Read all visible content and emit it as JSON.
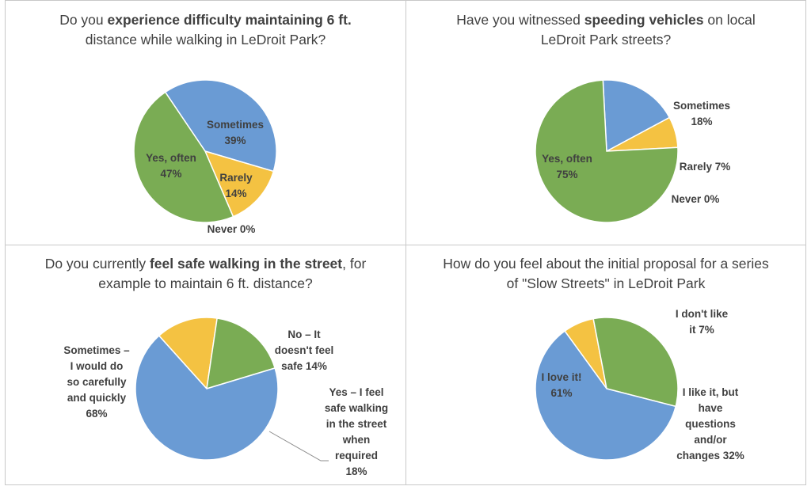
{
  "colors": {
    "blue": "#6a9bd4",
    "green": "#7aac54",
    "yellow": "#f4c242",
    "leader": "#8c8c8c"
  },
  "chart_data": [
    {
      "type": "pie",
      "title_parts": [
        {
          "text": "Do you ",
          "bold": false
        },
        {
          "text": "experience difficulty maintaining 6 ft.",
          "bold": true
        },
        {
          "text": " distance while walking in LeDroit Park?",
          "bold": false
        }
      ],
      "slices": [
        {
          "name": "Sometimes",
          "value": 39,
          "color": "#6a9bd4",
          "label_lines": [
            "Sometimes",
            "39%"
          ]
        },
        {
          "name": "Rarely",
          "value": 14,
          "color": "#f4c242",
          "label_lines": [
            "Rarely",
            "14%"
          ]
        },
        {
          "name": "Never",
          "value": 0,
          "color": "#c0504d",
          "label_lines": [
            "Never 0%"
          ]
        },
        {
          "name": "Yes, often",
          "value": 47,
          "color": "#7aac54",
          "label_lines": [
            "Yes, often",
            "47%"
          ]
        }
      ]
    },
    {
      "type": "pie",
      "title_parts": [
        {
          "text": "Have you witnessed ",
          "bold": false
        },
        {
          "text": "speeding vehicles",
          "bold": true
        },
        {
          "text": " on local LeDroit Park streets?",
          "bold": false
        }
      ],
      "slices": [
        {
          "name": "Sometimes",
          "value": 18,
          "color": "#6a9bd4",
          "label_lines": [
            "Sometimes",
            "18%"
          ]
        },
        {
          "name": "Rarely",
          "value": 7,
          "color": "#f4c242",
          "label_lines": [
            "Rarely 7%"
          ]
        },
        {
          "name": "Never",
          "value": 0,
          "color": "#c0504d",
          "label_lines": [
            "Never 0%"
          ]
        },
        {
          "name": "Yes, often",
          "value": 75,
          "color": "#7aac54",
          "label_lines": [
            "Yes, often",
            "75%"
          ]
        }
      ]
    },
    {
      "type": "pie",
      "title_parts": [
        {
          "text": "Do you currently ",
          "bold": false
        },
        {
          "text": "feel safe walking in the street",
          "bold": true
        },
        {
          "text": ", for example to maintain 6 ft. distance?",
          "bold": false
        }
      ],
      "slices": [
        {
          "name": "No – It doesn't feel safe",
          "value": 14,
          "color": "#f4c242",
          "label_lines": [
            "No – It",
            "doesn't feel",
            "safe 14%"
          ]
        },
        {
          "name": "Yes – I feel safe walking in the street when required",
          "value": 18,
          "color": "#7aac54",
          "label_lines": [
            "Yes – I feel",
            "safe walking",
            "in the street",
            "when",
            "required",
            "18%"
          ]
        },
        {
          "name": "Sometimes – I would do so carefully and quickly",
          "value": 68,
          "color": "#6a9bd4",
          "label_lines": [
            "Sometimes –",
            "I would do",
            "so carefully",
            "and quickly",
            "68%"
          ]
        }
      ]
    },
    {
      "type": "pie",
      "title_parts": [
        {
          "text": "How do you feel about the initial proposal for a series of \"Slow Streets\" in LeDroit Park",
          "bold": false
        }
      ],
      "slices": [
        {
          "name": "I don't like it",
          "value": 7,
          "color": "#f4c242",
          "label_lines": [
            "I don't like",
            "it 7%"
          ]
        },
        {
          "name": "I like it, but have questions and/or changes",
          "value": 32,
          "color": "#7aac54",
          "label_lines": [
            "I like it, but",
            "have",
            "questions",
            "and/or",
            "changes 32%"
          ]
        },
        {
          "name": "I love it!",
          "value": 61,
          "color": "#6a9bd4",
          "label_lines": [
            "I love it!",
            "61%"
          ]
        }
      ]
    }
  ]
}
